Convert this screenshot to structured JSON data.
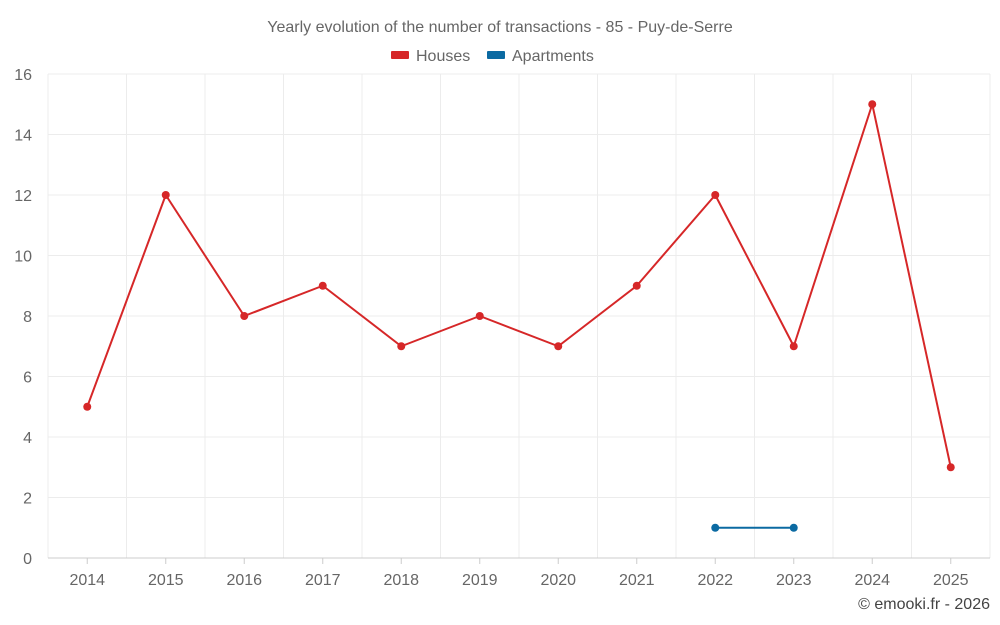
{
  "chart_data": {
    "type": "line",
    "title": "Yearly evolution of the number of transactions - 85 - Puy-de-Serre",
    "xlabel": "",
    "ylabel": "",
    "ylim": [
      0,
      16
    ],
    "yticks": [
      0,
      2,
      4,
      6,
      8,
      10,
      12,
      14,
      16
    ],
    "categories": [
      "2014",
      "2015",
      "2016",
      "2017",
      "2018",
      "2019",
      "2020",
      "2021",
      "2022",
      "2023",
      "2024",
      "2025"
    ],
    "series": [
      {
        "name": "Houses",
        "color": "#d62728",
        "values": [
          5,
          12,
          8,
          9,
          7,
          8,
          7,
          9,
          12,
          7,
          15,
          3
        ]
      },
      {
        "name": "Apartments",
        "color": "#0b6aa2",
        "values": [
          null,
          null,
          null,
          null,
          null,
          null,
          null,
          null,
          1,
          1,
          null,
          null
        ]
      }
    ],
    "legend_position": "top-center",
    "grid": true
  },
  "credit": "© emooki.fr - 2026"
}
